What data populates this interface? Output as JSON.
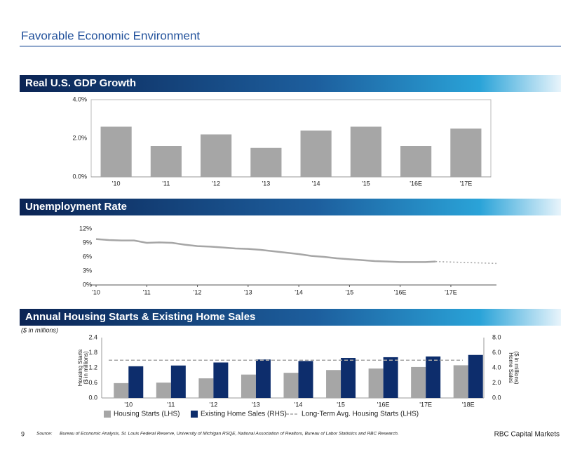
{
  "title": "Favorable Economic Environment",
  "chart_data": [
    {
      "type": "bar",
      "title": "Real U.S. GDP Growth",
      "categories": [
        "'10",
        "'11",
        "'12",
        "'13",
        "'14",
        "'15",
        "'16E",
        "'17E"
      ],
      "values": [
        2.6,
        1.6,
        2.2,
        1.5,
        2.4,
        2.6,
        1.6,
        2.5
      ],
      "color": "#a6a6a6",
      "ylim": [
        0,
        4
      ],
      "yticks": [
        {
          "value": 0,
          "label": "0.0%"
        },
        {
          "value": 2,
          "label": "2.0%"
        },
        {
          "value": 4,
          "label": "4.0%"
        }
      ]
    },
    {
      "type": "line",
      "title": "Unemployment Rate",
      "xlim": [
        2010,
        2017.9
      ],
      "xticks": [
        {
          "value": 2010,
          "label": "'10"
        },
        {
          "value": 2011,
          "label": "'11"
        },
        {
          "value": 2012,
          "label": "'12"
        },
        {
          "value": 2013,
          "label": "'13"
        },
        {
          "value": 2014,
          "label": "'14"
        },
        {
          "value": 2015,
          "label": "'15"
        },
        {
          "value": 2016,
          "label": "'16E"
        },
        {
          "value": 2017,
          "label": "'17E"
        }
      ],
      "ylim": [
        0,
        12
      ],
      "yticks": [
        {
          "value": 0,
          "label": "0%"
        },
        {
          "value": 3,
          "label": "3%"
        },
        {
          "value": 6,
          "label": "6%"
        },
        {
          "value": 9,
          "label": "9%"
        },
        {
          "value": 12,
          "label": "12%"
        }
      ],
      "series": [
        {
          "color": "#a6a6a6",
          "dashed": false,
          "x": [
            2010,
            2010.25,
            2010.5,
            2010.75,
            2011,
            2011.25,
            2011.5,
            2011.75,
            2012,
            2012.25,
            2012.5,
            2012.75,
            2013,
            2013.25,
            2013.5,
            2013.75,
            2014,
            2014.25,
            2014.5,
            2014.75,
            2015,
            2015.25,
            2015.5,
            2015.75,
            2016,
            2016.25,
            2016.5,
            2016.7
          ],
          "values": [
            9.8,
            9.6,
            9.5,
            9.5,
            9.0,
            9.1,
            9.0,
            8.6,
            8.3,
            8.2,
            8.0,
            7.8,
            7.7,
            7.5,
            7.2,
            6.9,
            6.6,
            6.2,
            6.0,
            5.7,
            5.5,
            5.3,
            5.1,
            5.0,
            4.9,
            4.9,
            4.9,
            5.0
          ]
        },
        {
          "color": "#a6a6a6",
          "dashed": true,
          "x": [
            2016.7,
            2017,
            2017.3,
            2017.6,
            2017.9
          ],
          "values": [
            5.0,
            4.9,
            4.8,
            4.7,
            4.6
          ]
        }
      ]
    },
    {
      "type": "bar",
      "title": "Annual Housing Starts & Existing Home Sales",
      "note": "($ in millions)",
      "categories": [
        "'10",
        "'11",
        "'12",
        "'13",
        "'14",
        "'15",
        "'16E",
        "'17E",
        "'18E"
      ],
      "ylabel": [
        "Housing Starts",
        "($ in millions)"
      ],
      "y2label": [
        "Home Sales",
        "($ in millions)"
      ],
      "ylim": [
        0,
        2.4
      ],
      "yticks": [
        {
          "value": 0,
          "label": "0.0"
        },
        {
          "value": 0.6,
          "label": "0.6"
        },
        {
          "value": 1.2,
          "label": "1.2"
        },
        {
          "value": 1.8,
          "label": "1.8"
        },
        {
          "value": 2.4,
          "label": "2.4"
        }
      ],
      "y2lim": [
        0,
        8
      ],
      "y2ticks": [
        {
          "value": 0,
          "label": "0.0"
        },
        {
          "value": 2,
          "label": "2.0"
        },
        {
          "value": 4,
          "label": "4.0"
        },
        {
          "value": 6,
          "label": "6.0"
        },
        {
          "value": 8,
          "label": "8.0"
        }
      ],
      "series": [
        {
          "name": "Housing Starts (LHS)",
          "color": "#a6a6a6",
          "values": [
            0.59,
            0.61,
            0.78,
            0.93,
            1.0,
            1.11,
            1.17,
            1.23,
            1.3
          ]
        },
        {
          "name": "Existing Home Sales (RHS)",
          "color": "#0d2d6c",
          "axis": "y2",
          "values": [
            4.2,
            4.3,
            4.7,
            5.1,
            4.9,
            5.3,
            5.4,
            5.5,
            5.7
          ]
        }
      ],
      "reference_line": {
        "name": "Long-Term Avg. Housing Starts (LHS)",
        "value": 1.5,
        "color": "#a6a6a6"
      }
    }
  ],
  "footer": {
    "page": "9",
    "source_label": "Source:",
    "source": "Bureau of Economic Analysis, St. Louis Federal Reserve, University of Michigan RSQE, National Association of Realtors, Bureau of Labor Statistics and RBC Research.",
    "company": "RBC Capital Markets"
  }
}
